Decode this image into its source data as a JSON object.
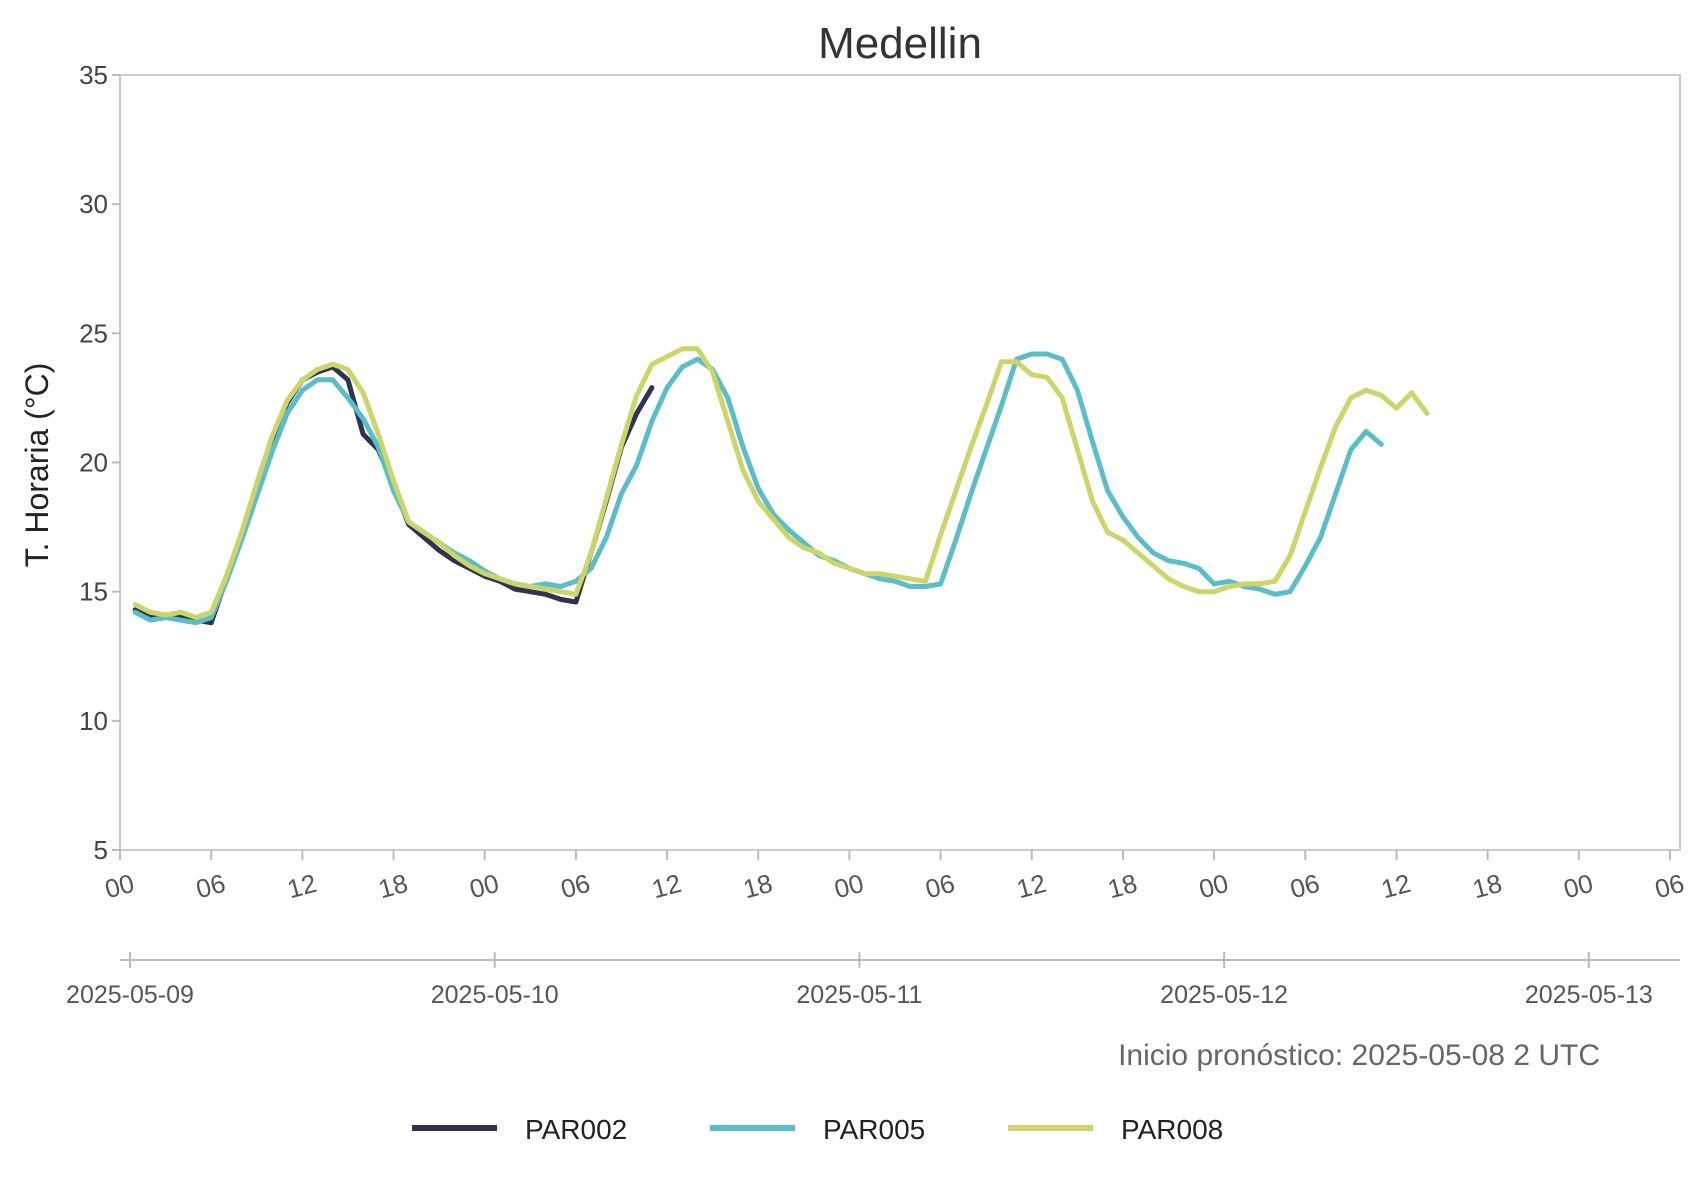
{
  "chart_data": {
    "type": "line",
    "title": "Medellin",
    "ylabel": "T. Horaria (°C)",
    "xlabel": "",
    "ylim": [
      5,
      35
    ],
    "yticks": [
      5,
      10,
      15,
      20,
      25,
      30,
      35
    ],
    "xlim_hours": [
      0,
      102
    ],
    "hour_ticks": [
      {
        "h": 0,
        "label": "00"
      },
      {
        "h": 6,
        "label": "06"
      },
      {
        "h": 12,
        "label": "12"
      },
      {
        "h": 18,
        "label": "18"
      },
      {
        "h": 24,
        "label": "00"
      },
      {
        "h": 30,
        "label": "06"
      },
      {
        "h": 36,
        "label": "12"
      },
      {
        "h": 42,
        "label": "18"
      },
      {
        "h": 48,
        "label": "00"
      },
      {
        "h": 54,
        "label": "06"
      },
      {
        "h": 60,
        "label": "12"
      },
      {
        "h": 66,
        "label": "18"
      },
      {
        "h": 72,
        "label": "00"
      },
      {
        "h": 78,
        "label": "06"
      },
      {
        "h": 84,
        "label": "12"
      },
      {
        "h": 90,
        "label": "18"
      },
      {
        "h": 96,
        "label": "00"
      },
      {
        "h": 102,
        "label": "06"
      }
    ],
    "date_ticks": [
      {
        "h": 0,
        "label": "2025-05-09"
      },
      {
        "h": 24,
        "label": "2025-05-10"
      },
      {
        "h": 48,
        "label": "2025-05-11"
      },
      {
        "h": 72,
        "label": "2025-05-12"
      },
      {
        "h": 96,
        "label": "2025-05-13"
      }
    ],
    "note": "Inicio pronóstico: 2025-05-08 2 UTC",
    "grid": false,
    "legend_position": "bottom-center",
    "series": [
      {
        "name": "PAR002",
        "color": "#2e3350",
        "x": [
          1,
          2,
          3,
          4,
          5,
          6,
          7,
          8,
          9,
          10,
          11,
          12,
          13,
          14,
          15,
          16,
          17,
          18,
          19,
          20,
          21,
          22,
          23,
          24,
          25,
          26,
          27,
          28,
          29,
          30,
          31,
          32,
          33,
          34,
          35
        ],
        "values": [
          14.3,
          14.0,
          14.0,
          14.1,
          13.9,
          13.8,
          15.5,
          17.2,
          19.0,
          20.8,
          22.3,
          23.2,
          23.5,
          23.7,
          23.2,
          21.1,
          20.5,
          19.1,
          17.6,
          17.1,
          16.6,
          16.2,
          15.9,
          15.6,
          15.4,
          15.1,
          15.0,
          14.9,
          14.7,
          14.6,
          16.5,
          18.5,
          20.6,
          21.9,
          22.9
        ]
      },
      {
        "name": "PAR005",
        "color": "#5bbdc8",
        "x": [
          1,
          2,
          3,
          4,
          5,
          6,
          7,
          8,
          9,
          10,
          11,
          12,
          13,
          14,
          15,
          16,
          17,
          18,
          19,
          20,
          21,
          22,
          23,
          24,
          25,
          26,
          27,
          28,
          29,
          30,
          31,
          32,
          33,
          34,
          35,
          36,
          37,
          38,
          39,
          40,
          41,
          42,
          43,
          44,
          45,
          46,
          47,
          48,
          49,
          50,
          51,
          52,
          53,
          54,
          55,
          56,
          57,
          58,
          59,
          60,
          61,
          62,
          63,
          64,
          65,
          66,
          67,
          68,
          69,
          70,
          71,
          72,
          73,
          74,
          75,
          76,
          77,
          78,
          79,
          80,
          81,
          82,
          83,
          84
        ],
        "values": [
          14.2,
          13.9,
          14.0,
          13.9,
          13.8,
          14.0,
          15.4,
          17.0,
          18.7,
          20.4,
          21.9,
          22.8,
          23.2,
          23.2,
          22.5,
          21.7,
          20.6,
          18.9,
          17.7,
          17.3,
          16.9,
          16.5,
          16.2,
          15.8,
          15.5,
          15.3,
          15.2,
          15.3,
          15.2,
          15.4,
          15.9,
          17.1,
          18.8,
          19.9,
          21.6,
          22.9,
          23.7,
          24.0,
          23.6,
          22.5,
          20.6,
          19.0,
          18.0,
          17.4,
          16.9,
          16.4,
          16.2,
          15.9,
          15.7,
          15.5,
          15.4,
          15.2,
          15.2,
          15.3,
          17.0,
          18.8,
          20.5,
          22.2,
          24.0,
          24.2,
          24.2,
          24.0,
          22.8,
          20.8,
          18.9,
          17.9,
          17.1,
          16.5,
          16.2,
          16.1,
          15.9,
          15.3,
          15.4,
          15.2,
          15.1,
          14.9,
          15.0,
          16.0,
          17.1,
          18.8,
          20.5,
          21.2,
          20.7,
          null
        ]
      },
      {
        "name": "PAR008",
        "color": "#cdd46a",
        "x": [
          1,
          2,
          3,
          4,
          5,
          6,
          7,
          8,
          9,
          10,
          11,
          12,
          13,
          14,
          15,
          16,
          17,
          18,
          19,
          20,
          21,
          22,
          23,
          24,
          25,
          26,
          27,
          28,
          29,
          30,
          31,
          32,
          33,
          34,
          35,
          36,
          37,
          38,
          39,
          40,
          41,
          42,
          43,
          44,
          45,
          46,
          47,
          48,
          49,
          50,
          51,
          52,
          53,
          54,
          55,
          56,
          57,
          58,
          59,
          60,
          61,
          62,
          63,
          64,
          65,
          66,
          67,
          68,
          69,
          70,
          71,
          72,
          73,
          74,
          75,
          76,
          77,
          78,
          79,
          80,
          81,
          82,
          83,
          84,
          85,
          86,
          87,
          88
        ],
        "values": [
          14.5,
          14.2,
          14.1,
          14.2,
          14.0,
          14.2,
          15.6,
          17.3,
          19.2,
          21.0,
          22.4,
          23.2,
          23.6,
          23.8,
          23.6,
          22.7,
          21.1,
          19.3,
          17.7,
          17.3,
          16.9,
          16.4,
          16.0,
          15.7,
          15.5,
          15.3,
          15.2,
          15.1,
          15.0,
          14.9,
          16.5,
          18.6,
          20.7,
          22.6,
          23.8,
          24.1,
          24.4,
          24.4,
          23.5,
          21.6,
          19.7,
          18.5,
          17.8,
          17.1,
          16.7,
          16.5,
          16.1,
          15.9,
          15.7,
          15.7,
          15.6,
          15.5,
          15.4,
          17.2,
          18.9,
          20.6,
          22.2,
          23.9,
          23.9,
          23.4,
          23.3,
          22.5,
          20.5,
          18.5,
          17.3,
          17.0,
          16.5,
          16.0,
          15.5,
          15.2,
          15.0,
          15.0,
          15.2,
          15.3,
          15.3,
          15.4,
          16.4,
          18.1,
          19.8,
          21.4,
          22.5,
          22.8,
          22.6,
          22.1,
          22.7,
          21.9,
          null,
          null
        ]
      }
    ]
  }
}
